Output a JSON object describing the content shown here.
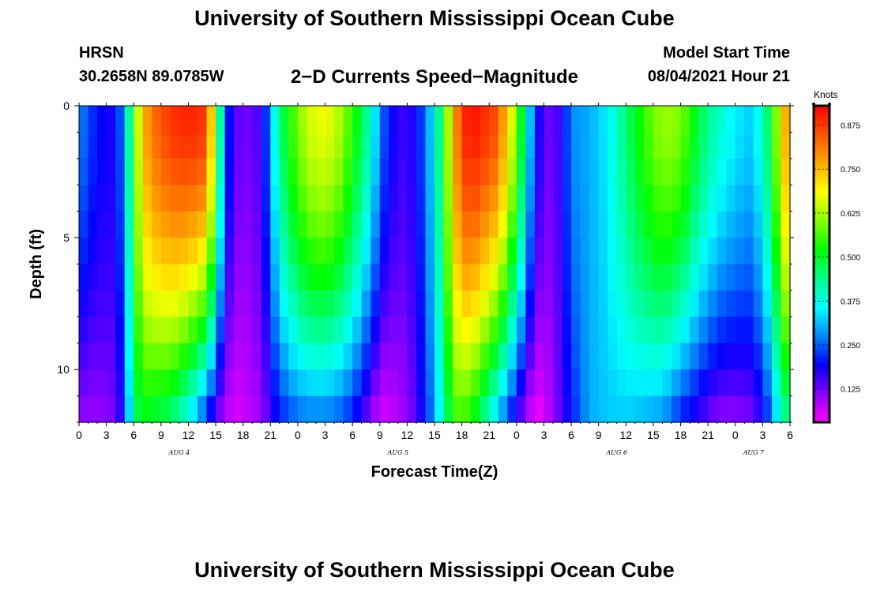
{
  "header": {
    "title": "University of Southern Mississippi Ocean Cube",
    "station": "HRSN",
    "coords": "30.2658N  89.0785W",
    "product": "2−D Currents Speed−Magnitude",
    "model_start_label": "Model Start Time",
    "model_start_value": "08/04/2021 Hour 21"
  },
  "footer": {
    "title": "University of Southern Mississippi Ocean Cube"
  },
  "chart_data": {
    "type": "heatmap",
    "xlabel": "Forecast Time(Z)",
    "ylabel": "Depth (ft)",
    "x_unit": "hours from AUG 4 00Z",
    "xlim": [
      0,
      78
    ],
    "ylim": [
      0,
      12
    ],
    "y_inverted": true,
    "x_tick_values": [
      0,
      3,
      6,
      9,
      12,
      15,
      18,
      21,
      24,
      27,
      30,
      33,
      36,
      39,
      42,
      45,
      48,
      51,
      54,
      57,
      60,
      63,
      66,
      69,
      72,
      75,
      78
    ],
    "x_tick_labels": [
      "0",
      "3",
      "6",
      "9",
      "12",
      "15",
      "18",
      "21",
      "0",
      "3",
      "6",
      "9",
      "12",
      "15",
      "18",
      "21",
      "0",
      "3",
      "6",
      "9",
      "12",
      "15",
      "18",
      "21",
      "0",
      "3",
      "6"
    ],
    "y_tick_values": [
      0,
      5,
      10
    ],
    "y_tick_labels": [
      "0",
      "5",
      "10"
    ],
    "day_labels": [
      {
        "text": "AUG  4",
        "x": 11
      },
      {
        "text": "AUG  5",
        "x": 35
      },
      {
        "text": "AUG  6",
        "x": 59
      },
      {
        "text": "AUG  7",
        "x": 74
      }
    ],
    "colorbar": {
      "title": "Knots",
      "min": 0.03,
      "max": 0.93,
      "ticks": [
        0.125,
        0.25,
        0.375,
        0.5,
        0.625,
        0.75,
        0.875
      ],
      "tick_labels": [
        "0.125",
        "0.250",
        "0.375",
        "0.500",
        "0.625",
        "0.750",
        "0.875"
      ],
      "colors": [
        "#ff00ff",
        "#8800ff",
        "#0000ff",
        "#0088ff",
        "#00ffff",
        "#00ff88",
        "#00ff00",
        "#88ff00",
        "#ffff00",
        "#ffaa00",
        "#ff5500",
        "#ff0000"
      ]
    },
    "time_step_hours": 1,
    "depths_ft": [
      0.25,
      0.75,
      1.5,
      2.5,
      3.5,
      4.5,
      5.5,
      6.5,
      7.5,
      8.5,
      9.5,
      10.5,
      11.5
    ],
    "speed_profile": {
      "description_points_hours": [
        0,
        2,
        4,
        5,
        6,
        7,
        8,
        10,
        12,
        14,
        15,
        16,
        17,
        18,
        20,
        21,
        22,
        24,
        26,
        28,
        30,
        32,
        33,
        34,
        36,
        38,
        40,
        41,
        42,
        43,
        44,
        46,
        48,
        50,
        51,
        52,
        53,
        54,
        56,
        58,
        60,
        62,
        64,
        66,
        68,
        70,
        72,
        74,
        76,
        77,
        78
      ],
      "surface_speed": [
        0.28,
        0.2,
        0.18,
        0.3,
        0.55,
        0.75,
        0.82,
        0.88,
        0.9,
        0.88,
        0.6,
        0.25,
        0.15,
        0.12,
        0.15,
        0.3,
        0.45,
        0.6,
        0.68,
        0.66,
        0.55,
        0.4,
        0.28,
        0.2,
        0.15,
        0.25,
        0.5,
        0.75,
        0.88,
        0.92,
        0.9,
        0.85,
        0.6,
        0.22,
        0.14,
        0.12,
        0.18,
        0.28,
        0.3,
        0.35,
        0.45,
        0.55,
        0.62,
        0.6,
        0.48,
        0.4,
        0.35,
        0.32,
        0.5,
        0.7,
        0.82
      ],
      "bottom_speed": [
        0.1,
        0.1,
        0.12,
        0.2,
        0.45,
        0.5,
        0.48,
        0.45,
        0.35,
        0.2,
        0.12,
        0.08,
        0.05,
        0.06,
        0.1,
        0.15,
        0.2,
        0.25,
        0.26,
        0.25,
        0.2,
        0.1,
        0.05,
        0.06,
        0.1,
        0.2,
        0.4,
        0.55,
        0.55,
        0.52,
        0.45,
        0.3,
        0.15,
        0.03,
        0.05,
        0.1,
        0.15,
        0.2,
        0.3,
        0.32,
        0.32,
        0.3,
        0.28,
        0.2,
        0.15,
        0.1,
        0.1,
        0.12,
        0.25,
        0.4,
        0.45
      ]
    }
  }
}
